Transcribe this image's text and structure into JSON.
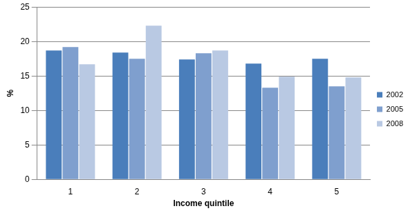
{
  "chart_data": {
    "type": "bar",
    "x_label": "Income quintile",
    "y_label": "%",
    "categories": [
      "1",
      "2",
      "3",
      "4",
      "5"
    ],
    "series": [
      {
        "name": "2002",
        "color": "#4a7ebb",
        "values": [
          18.7,
          18.4,
          17.4,
          16.8,
          17.5
        ]
      },
      {
        "name": "2005",
        "color": "#7f9fce",
        "values": [
          19.2,
          17.5,
          18.3,
          13.3,
          13.5
        ]
      },
      {
        "name": "2008",
        "color": "#b9c9e3",
        "values": [
          16.7,
          22.3,
          18.7,
          14.9,
          14.8
        ]
      }
    ],
    "ylim": [
      0,
      25
    ],
    "yticks": [
      0,
      5,
      10,
      15,
      20,
      25
    ],
    "grid": true,
    "legend": "right"
  }
}
